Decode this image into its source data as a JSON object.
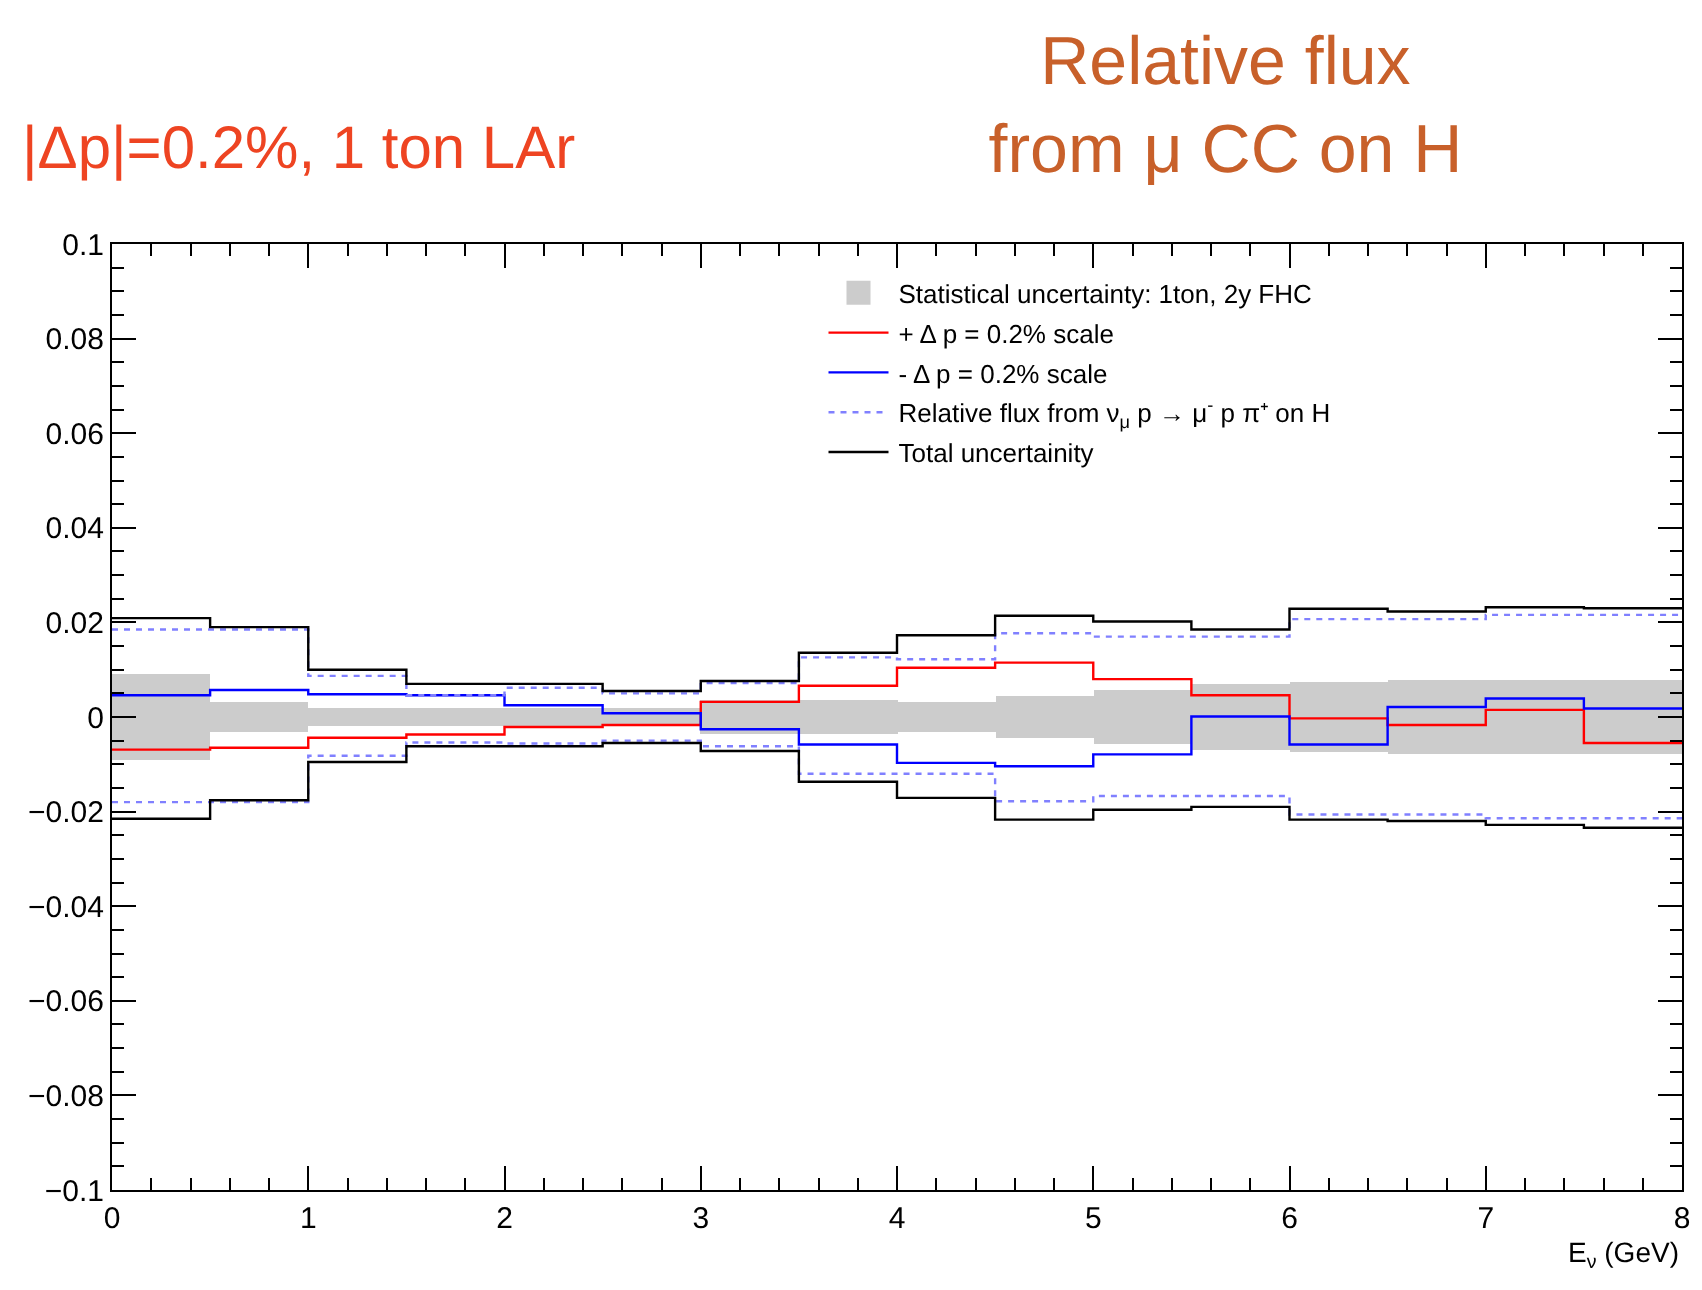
{
  "chart_data": {
    "type": "step",
    "title": "Relative flux\nfrom μ CC on H",
    "subtitle": "|Δp|=0.2%, 1 ton LAr",
    "xlabel": "E$_{ν}$ (GeV)",
    "x": [
      0,
      0.5,
      1,
      1.5,
      2,
      2.5,
      3,
      3.5,
      4,
      4.5,
      5,
      5.5,
      6,
      6.5,
      7,
      7.5,
      8
    ],
    "xlim": [
      0,
      8
    ],
    "xticks": [
      0,
      1,
      2,
      3,
      4,
      5,
      6,
      7,
      8
    ],
    "ylim": [
      -0.1,
      0.1
    ],
    "yticks": [
      -0.1,
      -0.08,
      -0.06,
      -0.04,
      -0.02,
      0,
      0.02,
      0.04,
      0.06,
      0.08,
      0.1
    ],
    "grid": false,
    "legend": "top right",
    "marker": "none",
    "line_style": "solid",
    "series": [
      {
        "name": "Statistical uncertainty: 1ton, 2y FHC",
        "type": "bar",
        "color": "#cccccc",
        "x": [
          0.25,
          0.75,
          1.25,
          1.75,
          2.25,
          2.75,
          3.25,
          3.75,
          4.25,
          4.75,
          5.25,
          5.75,
          6.25,
          6.75,
          7.25,
          7.75
        ],
        "base": [
          -0.009,
          -0.0031,
          -0.002,
          -0.002,
          -0.002,
          -0.002,
          -0.0035,
          -0.0035,
          -0.0031,
          -0.0045,
          -0.0059,
          -0.007,
          -0.0074,
          -0.0077,
          -0.0077,
          -0.0077
        ],
        "values": [
          0.018,
          0.0062,
          0.004,
          0.004,
          0.004,
          0.004,
          0.007,
          0.007,
          0.0062,
          0.009,
          0.0118,
          0.014,
          0.0148,
          0.0154,
          0.0154,
          0.0154
        ]
      },
      {
        "name": "+ Δ p = 0.2% scale",
        "color": "#ff0000",
        "values": [
          -0.0069,
          -0.0065,
          -0.0044,
          -0.0037,
          -0.0021,
          -0.0017,
          0.0032,
          0.0066,
          0.0104,
          0.0115,
          0.008,
          0.0046,
          -0.0003,
          -0.0017,
          0.0015,
          -0.0055,
          -0.0055
        ]
      },
      {
        "name": "- Δ p = 0.2% scale",
        "color": "#0000ff",
        "values": [
          0.0046,
          0.0057,
          0.0048,
          0.0046,
          0.0025,
          0.0008,
          -0.0026,
          -0.0058,
          -0.0097,
          -0.0104,
          -0.0079,
          0.0001,
          -0.0058,
          0.0021,
          0.0039,
          0.0018,
          0.0018
        ]
      },
      {
        "name": "Relative flux from ν$_{μ}$ p → μ$^{-}$ p π⁺ on H",
        "color": "#8080ff",
        "line_style": "dotted",
        "values": [
          0.0185,
          0.0185,
          0.0087,
          0.0046,
          0.0062,
          0.005,
          0.0072,
          0.0126,
          0.0122,
          0.0177,
          0.017,
          0.017,
          0.0207,
          0.0207,
          0.0216,
          0.0216,
          0.0216
        ]
      },
      {
        "color": "#8080ff",
        "line_style": "dotted",
        "values": [
          -0.018,
          -0.018,
          -0.0082,
          -0.0054,
          -0.0056,
          -0.005,
          -0.0062,
          -0.012,
          -0.012,
          -0.0178,
          -0.0167,
          -0.0167,
          -0.0206,
          -0.0206,
          -0.0214,
          -0.0214,
          -0.0214
        ]
      },
      {
        "name": "Total uncertainity",
        "color": "#000000",
        "values": [
          0.0209,
          0.019,
          0.01,
          0.007,
          0.007,
          0.0055,
          0.0076,
          0.0136,
          0.0173,
          0.0214,
          0.0202,
          0.0185,
          0.0229,
          0.0223,
          0.0232,
          0.023,
          0.023
        ]
      },
      {
        "color": "#000000",
        "values": [
          -0.0215,
          -0.0176,
          -0.0095,
          -0.0062,
          -0.0062,
          -0.0055,
          -0.0072,
          -0.0137,
          -0.0171,
          -0.0217,
          -0.0196,
          -0.019,
          -0.0217,
          -0.022,
          -0.0228,
          -0.0234,
          -0.0234
        ]
      }
    ]
  }
}
